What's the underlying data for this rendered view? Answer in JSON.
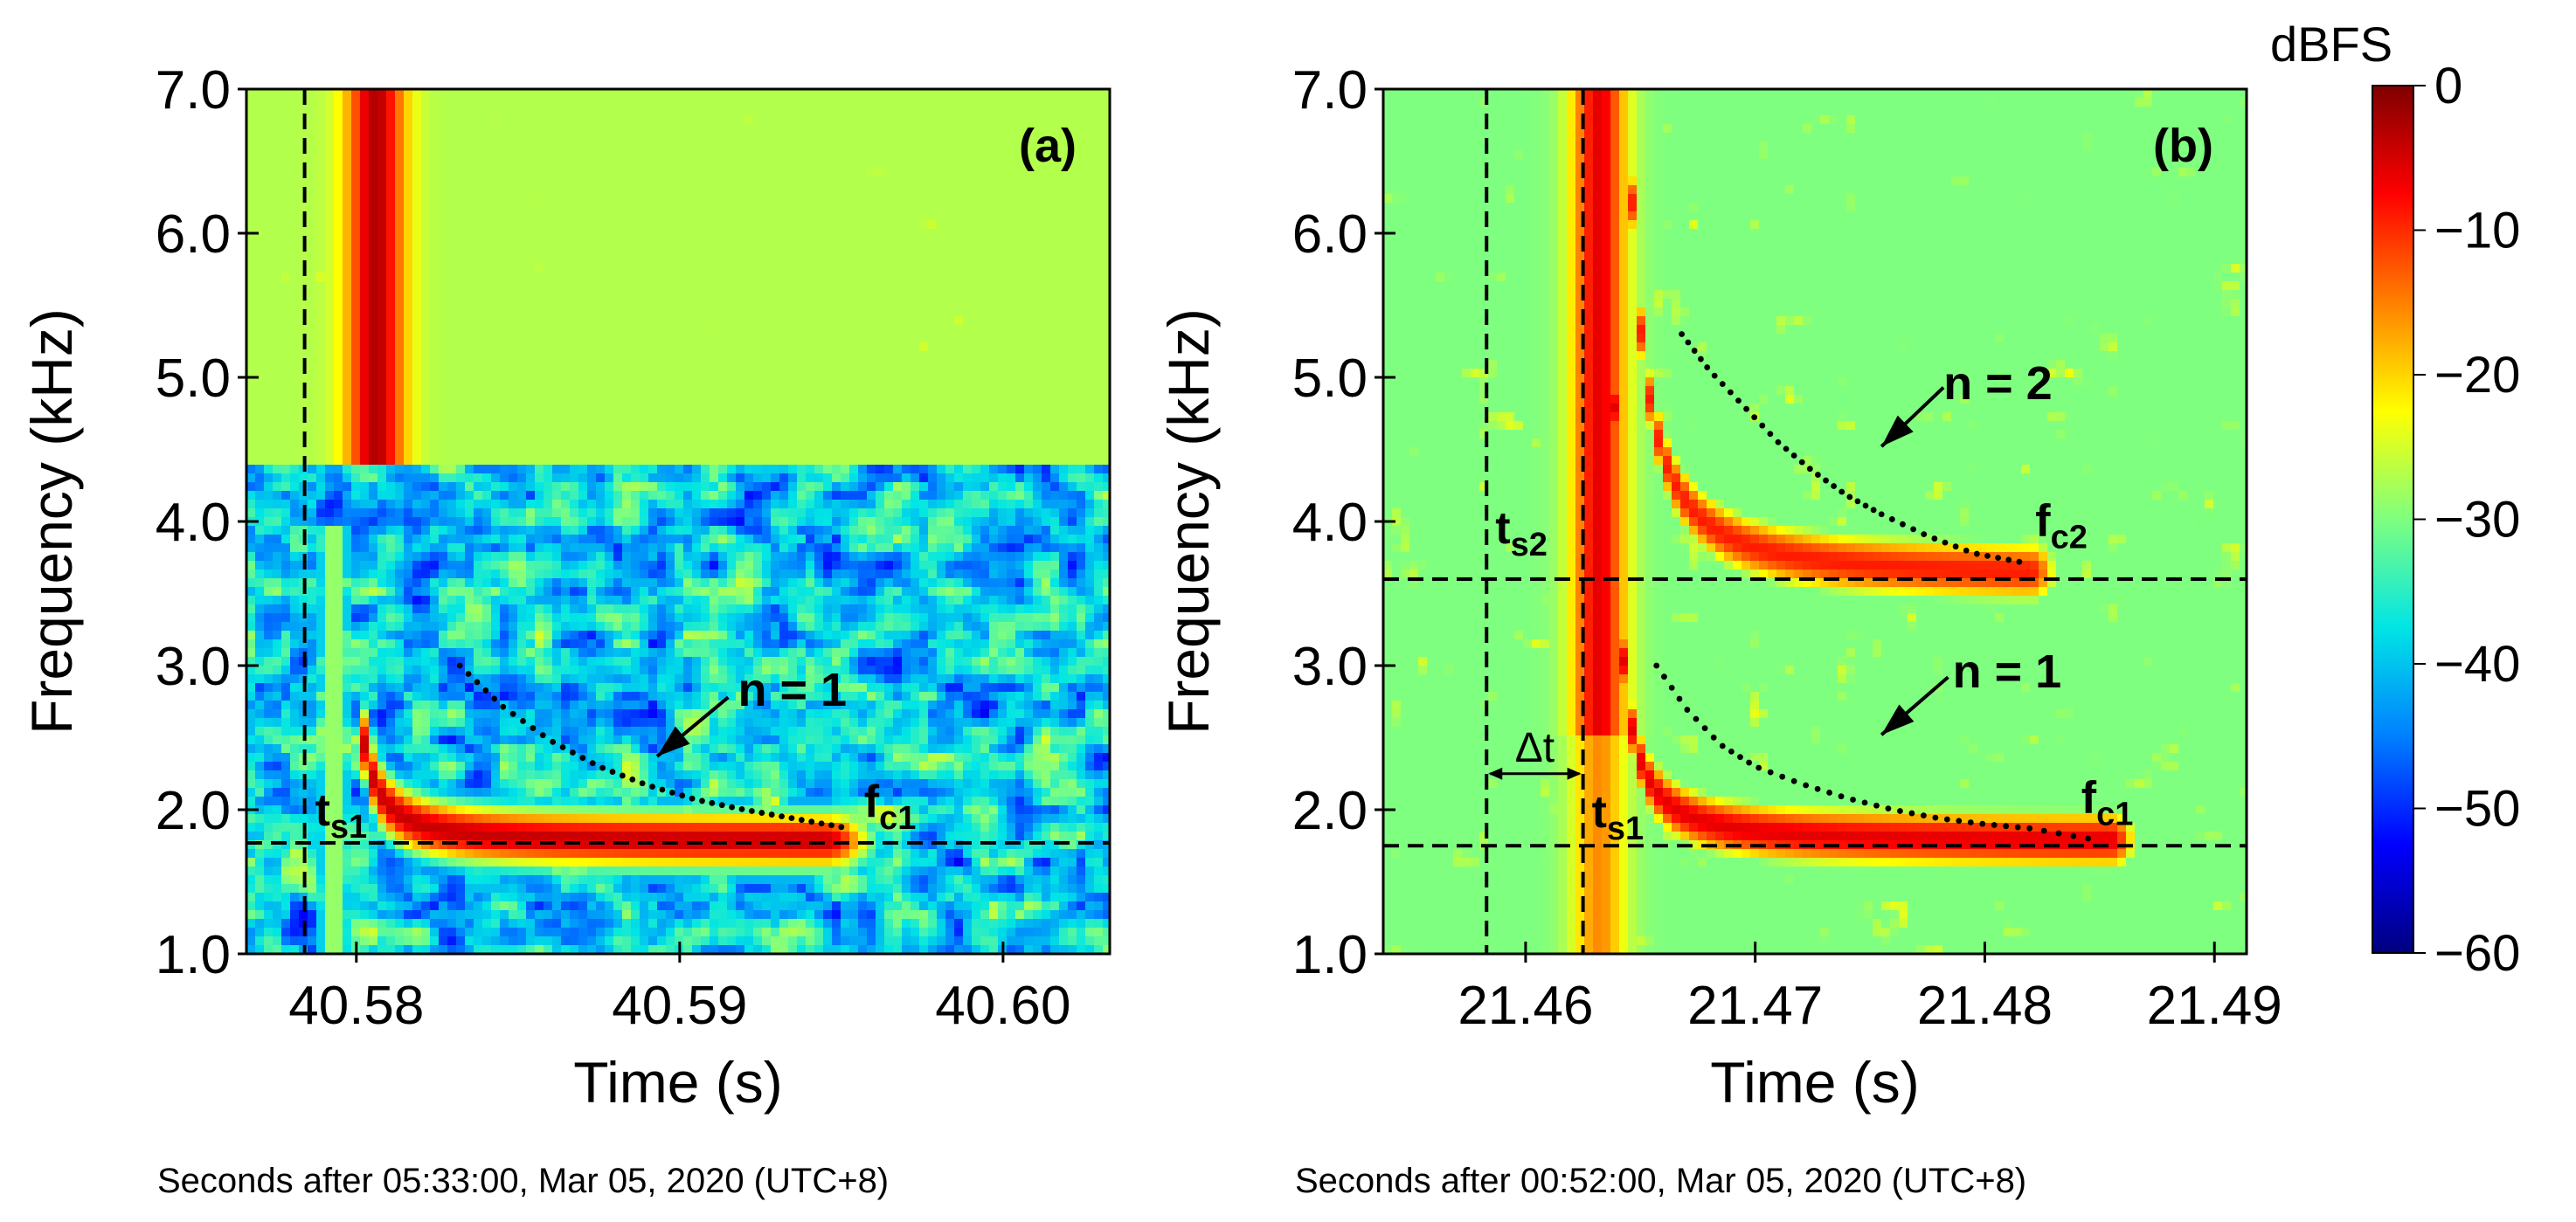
{
  "colorbar": {
    "label": "dBFS",
    "ticks": [
      "0",
      "−10",
      "−20",
      "−30",
      "−40",
      "−50",
      "−60"
    ],
    "tick_values": [
      0,
      -10,
      -20,
      -30,
      -40,
      -50,
      -60
    ],
    "range": [
      -60,
      0
    ],
    "colors": [
      "#00007f",
      "#0000ff",
      "#0080ff",
      "#00e5e5",
      "#7fff7f",
      "#ffff00",
      "#ff8000",
      "#ff0000",
      "#7f0000"
    ]
  },
  "chart_data": [
    {
      "type": "heatmap",
      "panel": "(a)",
      "xlabel": "Time (s)",
      "ylabel": "Frequency (kHz)",
      "xlim": [
        40.5766,
        40.6033
      ],
      "ylim": [
        1.0,
        7.0
      ],
      "xticks": [
        40.58,
        40.59,
        40.6
      ],
      "xtick_labels": [
        "40.58",
        "40.59",
        "40.60"
      ],
      "yticks": [
        1.0,
        2.0,
        3.0,
        4.0,
        5.0,
        6.0,
        7.0
      ],
      "ytick_labels": [
        "1.0",
        "2.0",
        "3.0",
        "4.0",
        "5.0",
        "6.0",
        "7.0"
      ],
      "caption": "Seconds after 05:33:00, Mar 05, 2020 (UTC+8)",
      "vlines": [
        {
          "x": 40.5784,
          "label": "t",
          "sub": "s1"
        }
      ],
      "hlines": [
        {
          "y": 1.77,
          "label": "f",
          "sub": "c1"
        }
      ],
      "traces": [
        {
          "name": "n = 1",
          "x": [
            40.5832,
            40.5845,
            40.586,
            40.5875,
            40.589,
            40.5905,
            40.592,
            40.5935,
            40.595
          ],
          "y": [
            3.0,
            2.72,
            2.48,
            2.3,
            2.17,
            2.07,
            2.0,
            1.94,
            1.88
          ]
        }
      ],
      "annotations": [
        {
          "text": "n = 1",
          "arrow_to": [
            40.5893,
            2.37
          ]
        }
      ]
    },
    {
      "type": "heatmap",
      "panel": "(b)",
      "xlabel": "Time (s)",
      "ylabel": "Frequency (kHz)",
      "xlim": [
        21.4538,
        21.4914
      ],
      "ylim": [
        1.0,
        7.0
      ],
      "xticks": [
        21.46,
        21.47,
        21.48,
        21.49
      ],
      "xtick_labels": [
        "21.46",
        "21.47",
        "21.48",
        "21.49"
      ],
      "yticks": [
        1.0,
        2.0,
        3.0,
        4.0,
        5.0,
        6.0,
        7.0
      ],
      "ytick_labels": [
        "1.0",
        "2.0",
        "3.0",
        "4.0",
        "5.0",
        "6.0",
        "7.0"
      ],
      "caption": "Seconds after 00:52:00, Mar 05, 2020 (UTC+8)",
      "vlines": [
        {
          "x": 21.4583,
          "label": "t",
          "sub": "s2"
        },
        {
          "x": 21.4625,
          "label": "t",
          "sub": "s1"
        }
      ],
      "hlines": [
        {
          "y": 3.6,
          "label": "f",
          "sub": "c2"
        },
        {
          "y": 1.75,
          "label": "f",
          "sub": "c1"
        }
      ],
      "delta_t_label": "Δt",
      "traces": [
        {
          "name": "n = 1",
          "x": [
            21.4657,
            21.467,
            21.4685,
            21.47,
            21.472,
            21.474,
            21.476,
            21.478,
            21.48,
            21.482,
            21.4845
          ],
          "y": [
            3.0,
            2.7,
            2.45,
            2.3,
            2.18,
            2.08,
            2.0,
            1.94,
            1.9,
            1.87,
            1.8
          ]
        },
        {
          "name": "n = 2",
          "x": [
            21.4668,
            21.468,
            21.4695,
            21.471,
            21.4725,
            21.474,
            21.4755,
            21.4775,
            21.4795,
            21.4815
          ],
          "y": [
            5.3,
            5.05,
            4.8,
            4.55,
            4.35,
            4.18,
            4.05,
            3.9,
            3.78,
            3.72
          ]
        }
      ],
      "annotations": [
        {
          "text": "n = 2",
          "arrow_to": [
            21.4755,
            4.52
          ]
        },
        {
          "text": "n = 1",
          "arrow_to": [
            21.4755,
            2.52
          ]
        }
      ]
    }
  ]
}
